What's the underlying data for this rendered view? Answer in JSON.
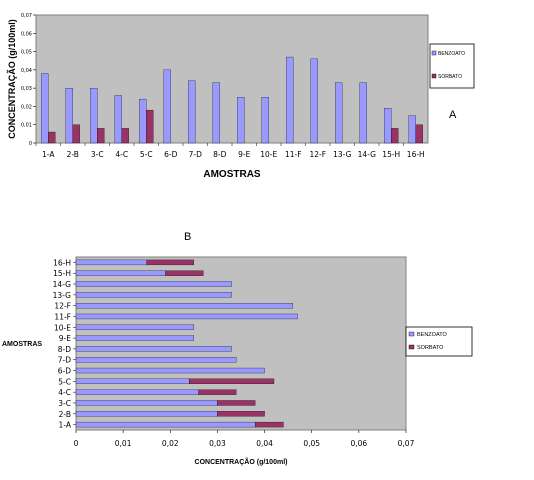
{
  "chart_data": [
    {
      "type": "bar",
      "panel_label": "A",
      "title": "",
      "xlabel": "AMOSTRAS",
      "ylabel": "CONCENTRAÇÃO (g/100ml)",
      "ylim": [
        0,
        0.07
      ],
      "yticks": [
        "0,07",
        "0,06",
        "0,05",
        "0,04",
        "0,03",
        "0,02",
        "0,01",
        "0"
      ],
      "grid": false,
      "legend_position": "right",
      "colors": {
        "benzoato": "#9999ff",
        "sorbato": "#993366",
        "plot_bg": "#c0c0c0"
      },
      "categories": [
        "1-A",
        "2-B",
        "3-C",
        "4-C",
        "5-C",
        "6-D",
        "7-D",
        "8-D",
        "9-E",
        "10-E",
        "11-F",
        "12-F",
        "13-G",
        "14-G",
        "15-H",
        "16-H"
      ],
      "series": [
        {
          "name": "BENZOATO",
          "values": [
            0.038,
            0.03,
            0.03,
            0.026,
            0.024,
            0.04,
            0.034,
            0.033,
            0.025,
            0.025,
            0.047,
            0.046,
            0.033,
            0.033,
            0.019,
            0.015
          ]
        },
        {
          "name": "SORBATO",
          "values": [
            0.006,
            0.01,
            0.008,
            0.008,
            0.018,
            0,
            0,
            0,
            0,
            0,
            0,
            0,
            0,
            0,
            0.008,
            0.01
          ]
        }
      ],
      "legend_labels": [
        "BENZOATO",
        "SORBATO"
      ]
    },
    {
      "type": "bar",
      "orientation": "horizontal-stacked",
      "panel_label": "B",
      "title": "",
      "xlabel": "CONCENTRAÇÃO (g/100ml)",
      "ylabel": "AMOSTRAS",
      "xlim": [
        0,
        0.07
      ],
      "xticks": [
        "0",
        "0,01",
        "0,02",
        "0,03",
        "0,04",
        "0,05",
        "0,06",
        "0,07"
      ],
      "grid": false,
      "legend_position": "right",
      "colors": {
        "benzoato": "#9999ff",
        "sorbato": "#993366",
        "plot_bg": "#c0c0c0"
      },
      "categories": [
        "1-A",
        "2-B",
        "3-C",
        "4-C",
        "5-C",
        "6-D",
        "7-D",
        "8-D",
        "9-E",
        "10-E",
        "11-F",
        "12-F",
        "13-G",
        "14-G",
        "15-H",
        "16-H"
      ],
      "series": [
        {
          "name": "BENZOATO",
          "values": [
            0.038,
            0.03,
            0.03,
            0.026,
            0.024,
            0.04,
            0.034,
            0.033,
            0.025,
            0.025,
            0.047,
            0.046,
            0.033,
            0.033,
            0.019,
            0.015
          ]
        },
        {
          "name": "SORBATO",
          "values": [
            0.006,
            0.01,
            0.008,
            0.008,
            0.018,
            0,
            0,
            0,
            0,
            0,
            0,
            0,
            0,
            0,
            0.008,
            0.01
          ]
        }
      ],
      "legend_labels": [
        "BENZOATO",
        "SORBATO"
      ]
    }
  ]
}
